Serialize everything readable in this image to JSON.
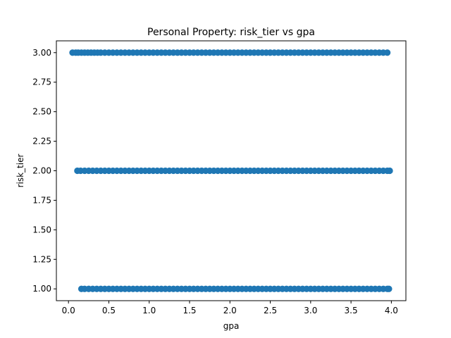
{
  "chart_data": {
    "type": "scatter",
    "title": "Personal Property: risk_tier vs gpa",
    "xlabel": "gpa",
    "ylabel": "risk_tier",
    "xlim": [
      -0.15,
      4.18
    ],
    "ylim": [
      0.9,
      3.1
    ],
    "x_ticks": [
      {
        "value": 0.0,
        "label": "0.0"
      },
      {
        "value": 0.5,
        "label": "0.5"
      },
      {
        "value": 1.0,
        "label": "1.0"
      },
      {
        "value": 1.5,
        "label": "1.5"
      },
      {
        "value": 2.0,
        "label": "2.0"
      },
      {
        "value": 2.5,
        "label": "2.5"
      },
      {
        "value": 3.0,
        "label": "3.0"
      },
      {
        "value": 3.5,
        "label": "3.5"
      },
      {
        "value": 4.0,
        "label": "4.0"
      }
    ],
    "y_ticks": [
      {
        "value": 1.0,
        "label": "1.00"
      },
      {
        "value": 1.25,
        "label": "1.25"
      },
      {
        "value": 1.5,
        "label": "1.50"
      },
      {
        "value": 1.75,
        "label": "1.75"
      },
      {
        "value": 2.0,
        "label": "2.00"
      },
      {
        "value": 2.25,
        "label": "2.25"
      },
      {
        "value": 2.5,
        "label": "2.50"
      },
      {
        "value": 2.75,
        "label": "2.75"
      },
      {
        "value": 3.0,
        "label": "3.00"
      }
    ],
    "grid": false,
    "color": "#1f77b4",
    "series": [
      {
        "points": [
          [
            0.05,
            3
          ],
          [
            0.09,
            3
          ],
          [
            0.12,
            3
          ],
          [
            0.16,
            3
          ],
          [
            0.2,
            3
          ],
          [
            0.24,
            3
          ],
          [
            0.28,
            3
          ],
          [
            0.32,
            3
          ],
          [
            0.36,
            3
          ],
          [
            0.4,
            3
          ],
          [
            0.45,
            3
          ],
          [
            0.5,
            3
          ],
          [
            0.55,
            3
          ],
          [
            0.6,
            3
          ],
          [
            0.65,
            3
          ],
          [
            0.7,
            3
          ],
          [
            0.75,
            3
          ],
          [
            0.8,
            3
          ],
          [
            0.85,
            3
          ],
          [
            0.9,
            3
          ],
          [
            0.95,
            3
          ],
          [
            1.0,
            3
          ],
          [
            1.05,
            3
          ],
          [
            1.1,
            3
          ],
          [
            1.15,
            3
          ],
          [
            1.2,
            3
          ],
          [
            1.25,
            3
          ],
          [
            1.3,
            3
          ],
          [
            1.35,
            3
          ],
          [
            1.4,
            3
          ],
          [
            1.45,
            3
          ],
          [
            1.5,
            3
          ],
          [
            1.55,
            3
          ],
          [
            1.6,
            3
          ],
          [
            1.65,
            3
          ],
          [
            1.7,
            3
          ],
          [
            1.75,
            3
          ],
          [
            1.8,
            3
          ],
          [
            1.85,
            3
          ],
          [
            1.9,
            3
          ],
          [
            1.95,
            3
          ],
          [
            2.0,
            3
          ],
          [
            2.05,
            3
          ],
          [
            2.1,
            3
          ],
          [
            2.15,
            3
          ],
          [
            2.2,
            3
          ],
          [
            2.25,
            3
          ],
          [
            2.3,
            3
          ],
          [
            2.35,
            3
          ],
          [
            2.4,
            3
          ],
          [
            2.45,
            3
          ],
          [
            2.5,
            3
          ],
          [
            2.55,
            3
          ],
          [
            2.6,
            3
          ],
          [
            2.65,
            3
          ],
          [
            2.7,
            3
          ],
          [
            2.75,
            3
          ],
          [
            2.8,
            3
          ],
          [
            2.85,
            3
          ],
          [
            2.9,
            3
          ],
          [
            2.95,
            3
          ],
          [
            3.0,
            3
          ],
          [
            3.05,
            3
          ],
          [
            3.1,
            3
          ],
          [
            3.15,
            3
          ],
          [
            3.2,
            3
          ],
          [
            3.25,
            3
          ],
          [
            3.3,
            3
          ],
          [
            3.35,
            3
          ],
          [
            3.4,
            3
          ],
          [
            3.45,
            3
          ],
          [
            3.5,
            3
          ],
          [
            3.55,
            3
          ],
          [
            3.6,
            3
          ],
          [
            3.65,
            3
          ],
          [
            3.7,
            3
          ],
          [
            3.75,
            3
          ],
          [
            3.8,
            3
          ],
          [
            3.85,
            3
          ],
          [
            3.9,
            3
          ],
          [
            3.95,
            3
          ],
          [
            0.11,
            2
          ],
          [
            0.15,
            2
          ],
          [
            0.2,
            2
          ],
          [
            0.25,
            2
          ],
          [
            0.3,
            2
          ],
          [
            0.35,
            2
          ],
          [
            0.4,
            2
          ],
          [
            0.45,
            2
          ],
          [
            0.5,
            2
          ],
          [
            0.55,
            2
          ],
          [
            0.6,
            2
          ],
          [
            0.65,
            2
          ],
          [
            0.7,
            2
          ],
          [
            0.75,
            2
          ],
          [
            0.8,
            2
          ],
          [
            0.85,
            2
          ],
          [
            0.9,
            2
          ],
          [
            0.95,
            2
          ],
          [
            1.0,
            2
          ],
          [
            1.05,
            2
          ],
          [
            1.1,
            2
          ],
          [
            1.15,
            2
          ],
          [
            1.2,
            2
          ],
          [
            1.25,
            2
          ],
          [
            1.3,
            2
          ],
          [
            1.35,
            2
          ],
          [
            1.4,
            2
          ],
          [
            1.45,
            2
          ],
          [
            1.5,
            2
          ],
          [
            1.55,
            2
          ],
          [
            1.6,
            2
          ],
          [
            1.65,
            2
          ],
          [
            1.7,
            2
          ],
          [
            1.75,
            2
          ],
          [
            1.8,
            2
          ],
          [
            1.85,
            2
          ],
          [
            1.9,
            2
          ],
          [
            1.95,
            2
          ],
          [
            2.0,
            2
          ],
          [
            2.05,
            2
          ],
          [
            2.1,
            2
          ],
          [
            2.15,
            2
          ],
          [
            2.2,
            2
          ],
          [
            2.25,
            2
          ],
          [
            2.3,
            2
          ],
          [
            2.35,
            2
          ],
          [
            2.4,
            2
          ],
          [
            2.45,
            2
          ],
          [
            2.5,
            2
          ],
          [
            2.55,
            2
          ],
          [
            2.6,
            2
          ],
          [
            2.65,
            2
          ],
          [
            2.7,
            2
          ],
          [
            2.75,
            2
          ],
          [
            2.8,
            2
          ],
          [
            2.85,
            2
          ],
          [
            2.9,
            2
          ],
          [
            2.95,
            2
          ],
          [
            3.0,
            2
          ],
          [
            3.05,
            2
          ],
          [
            3.1,
            2
          ],
          [
            3.15,
            2
          ],
          [
            3.2,
            2
          ],
          [
            3.25,
            2
          ],
          [
            3.3,
            2
          ],
          [
            3.35,
            2
          ],
          [
            3.4,
            2
          ],
          [
            3.45,
            2
          ],
          [
            3.5,
            2
          ],
          [
            3.55,
            2
          ],
          [
            3.6,
            2
          ],
          [
            3.65,
            2
          ],
          [
            3.7,
            2
          ],
          [
            3.75,
            2
          ],
          [
            3.8,
            2
          ],
          [
            3.85,
            2
          ],
          [
            3.9,
            2
          ],
          [
            3.95,
            2
          ],
          [
            3.98,
            2
          ],
          [
            0.16,
            1
          ],
          [
            0.2,
            1
          ],
          [
            0.25,
            1
          ],
          [
            0.3,
            1
          ],
          [
            0.35,
            1
          ],
          [
            0.4,
            1
          ],
          [
            0.45,
            1
          ],
          [
            0.5,
            1
          ],
          [
            0.55,
            1
          ],
          [
            0.6,
            1
          ],
          [
            0.65,
            1
          ],
          [
            0.7,
            1
          ],
          [
            0.75,
            1
          ],
          [
            0.8,
            1
          ],
          [
            0.85,
            1
          ],
          [
            0.9,
            1
          ],
          [
            0.95,
            1
          ],
          [
            1.0,
            1
          ],
          [
            1.05,
            1
          ],
          [
            1.1,
            1
          ],
          [
            1.15,
            1
          ],
          [
            1.2,
            1
          ],
          [
            1.25,
            1
          ],
          [
            1.3,
            1
          ],
          [
            1.35,
            1
          ],
          [
            1.4,
            1
          ],
          [
            1.45,
            1
          ],
          [
            1.5,
            1
          ],
          [
            1.55,
            1
          ],
          [
            1.6,
            1
          ],
          [
            1.65,
            1
          ],
          [
            1.7,
            1
          ],
          [
            1.75,
            1
          ],
          [
            1.8,
            1
          ],
          [
            1.85,
            1
          ],
          [
            1.9,
            1
          ],
          [
            1.95,
            1
          ],
          [
            2.0,
            1
          ],
          [
            2.05,
            1
          ],
          [
            2.1,
            1
          ],
          [
            2.15,
            1
          ],
          [
            2.2,
            1
          ],
          [
            2.25,
            1
          ],
          [
            2.3,
            1
          ],
          [
            2.35,
            1
          ],
          [
            2.4,
            1
          ],
          [
            2.45,
            1
          ],
          [
            2.5,
            1
          ],
          [
            2.55,
            1
          ],
          [
            2.6,
            1
          ],
          [
            2.65,
            1
          ],
          [
            2.7,
            1
          ],
          [
            2.75,
            1
          ],
          [
            2.8,
            1
          ],
          [
            2.85,
            1
          ],
          [
            2.9,
            1
          ],
          [
            2.95,
            1
          ],
          [
            3.0,
            1
          ],
          [
            3.05,
            1
          ],
          [
            3.1,
            1
          ],
          [
            3.15,
            1
          ],
          [
            3.2,
            1
          ],
          [
            3.25,
            1
          ],
          [
            3.3,
            1
          ],
          [
            3.35,
            1
          ],
          [
            3.4,
            1
          ],
          [
            3.45,
            1
          ],
          [
            3.5,
            1
          ],
          [
            3.55,
            1
          ],
          [
            3.6,
            1
          ],
          [
            3.65,
            1
          ],
          [
            3.7,
            1
          ],
          [
            3.75,
            1
          ],
          [
            3.8,
            1
          ],
          [
            3.85,
            1
          ],
          [
            3.9,
            1
          ],
          [
            3.95,
            1
          ],
          [
            3.97,
            1
          ]
        ]
      }
    ]
  }
}
